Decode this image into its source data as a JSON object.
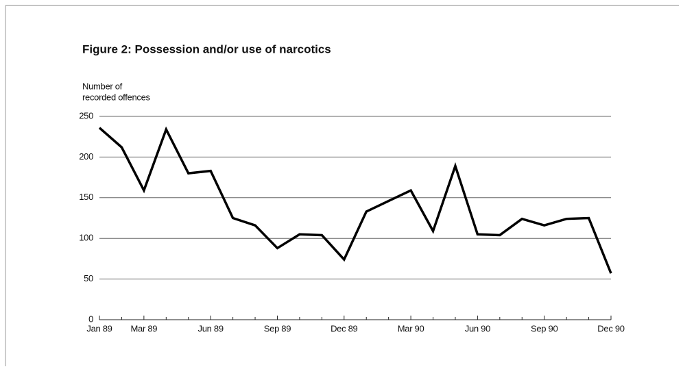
{
  "chart_data": {
    "type": "line",
    "title": "Figure 2:  Possession and/or use of narcotics",
    "ylabel": [
      "Number of",
      "recorded offences"
    ],
    "categories": [
      "Jan 89",
      null,
      "Mar 89",
      null,
      null,
      "Jun 89",
      null,
      null,
      "Sep 89",
      null,
      null,
      "Dec 89",
      null,
      null,
      "Mar 90",
      null,
      null,
      "Jun 90",
      null,
      null,
      "Sep 90",
      null,
      null,
      "Dec 90"
    ],
    "values": [
      236,
      212,
      159,
      234,
      180,
      183,
      125,
      116,
      88,
      105,
      104,
      74,
      133,
      146,
      159,
      109,
      189,
      105,
      104,
      124,
      116,
      124,
      125,
      57
    ],
    "color": "#000000",
    "ylim": [
      0,
      250
    ],
    "yticks": [
      0,
      50,
      100,
      150,
      200,
      250
    ],
    "grid": true
  }
}
